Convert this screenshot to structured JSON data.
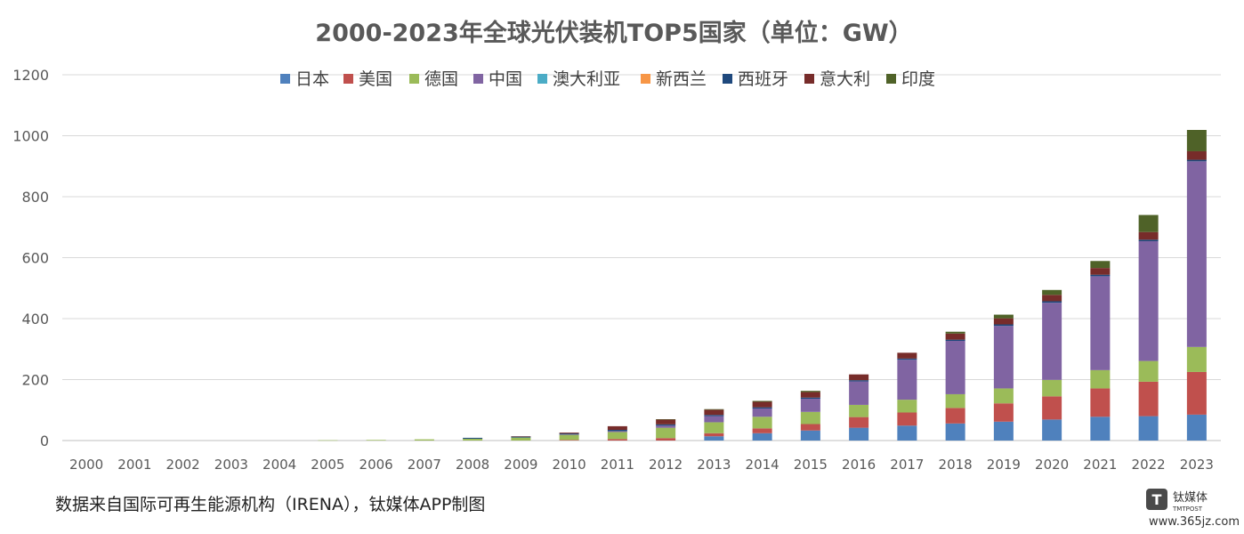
{
  "chart_data": {
    "type": "bar",
    "stacked": true,
    "title": "2000-2023年全球光伏装机TOP5国家（单位：GW）",
    "categories": [
      "2000",
      "2001",
      "2002",
      "2003",
      "2004",
      "2005",
      "2006",
      "2007",
      "2008",
      "2009",
      "2010",
      "2011",
      "2012",
      "2013",
      "2014",
      "2015",
      "2016",
      "2017",
      "2018",
      "2019",
      "2020",
      "2021",
      "2022",
      "2023"
    ],
    "ylim": [
      0,
      1200
    ],
    "yticks": [
      0,
      200,
      400,
      600,
      800,
      1000,
      1200
    ],
    "grid": true,
    "legend_position": "top",
    "series": [
      {
        "name": "日本",
        "color": "#4f81bd",
        "values": [
          0,
          0,
          0,
          0,
          0,
          0,
          0,
          0,
          0,
          0,
          0,
          0,
          0,
          14,
          24,
          33,
          42,
          49,
          56,
          62,
          69,
          78,
          80,
          85
        ]
      },
      {
        "name": "美国",
        "color": "#c0504d",
        "values": [
          0,
          0,
          0,
          0,
          0,
          0,
          0,
          0,
          0,
          0,
          2,
          5,
          8,
          10,
          16,
          21,
          35,
          43,
          51,
          60,
          76,
          93,
          113,
          140
        ]
      },
      {
        "name": "德国",
        "color": "#9bbb59",
        "values": [
          0,
          0,
          0,
          0,
          0,
          1,
          2,
          4,
          6,
          10,
          17,
          23,
          34,
          36,
          38,
          40,
          40,
          42,
          45,
          49,
          54,
          60,
          68,
          82
        ]
      },
      {
        "name": "中国",
        "color": "#8064a2",
        "values": [
          0,
          0,
          0,
          0,
          0,
          0,
          0,
          0,
          0,
          0,
          1,
          3,
          7,
          20,
          27,
          43,
          77,
          131,
          175,
          205,
          253,
          308,
          393,
          609
        ]
      },
      {
        "name": "澳大利亚",
        "color": "#4bacc6",
        "values": [
          0,
          0,
          0,
          0,
          0,
          0,
          0,
          0,
          0,
          0,
          0,
          0,
          0,
          0,
          0,
          0,
          0,
          0,
          0,
          0,
          0,
          0,
          0,
          0
        ]
      },
      {
        "name": "新西兰",
        "color": "#f79646",
        "values": [
          0,
          0,
          0,
          0,
          0,
          0,
          0,
          0,
          0,
          0,
          0,
          0,
          0,
          0,
          0,
          0,
          0,
          0,
          0,
          0,
          0,
          0,
          0,
          0
        ]
      },
      {
        "name": "西班牙",
        "color": "#1f497d",
        "values": [
          0,
          0,
          0,
          0,
          0,
          0,
          0,
          0,
          3,
          3,
          3,
          4,
          4,
          4,
          4,
          4,
          4,
          4,
          4,
          5,
          5,
          5,
          5,
          5
        ]
      },
      {
        "name": "意大利",
        "color": "#772c2a",
        "values": [
          0,
          0,
          0,
          0,
          0,
          0,
          0,
          0,
          0,
          1,
          3,
          12,
          16,
          17,
          18,
          18,
          19,
          19,
          20,
          20,
          21,
          22,
          25,
          28
        ]
      },
      {
        "name": "印度",
        "color": "#4f6228",
        "values": [
          0,
          0,
          0,
          0,
          0,
          0,
          0,
          0,
          0,
          0,
          0,
          0,
          1,
          2,
          3,
          4,
          0,
          0,
          6,
          12,
          16,
          23,
          56,
          70
        ]
      }
    ]
  },
  "source_note": "数据来自国际可再生能源机构（IRENA），钛媒体APP制图",
  "watermark": {
    "logo_text": "钛媒体",
    "logo_sub": "TMTPOST",
    "url": "www.365jz.com"
  },
  "colors": {
    "grid": "#d9d9d9",
    "axis": "#bfbfbf",
    "text": "#595959"
  }
}
